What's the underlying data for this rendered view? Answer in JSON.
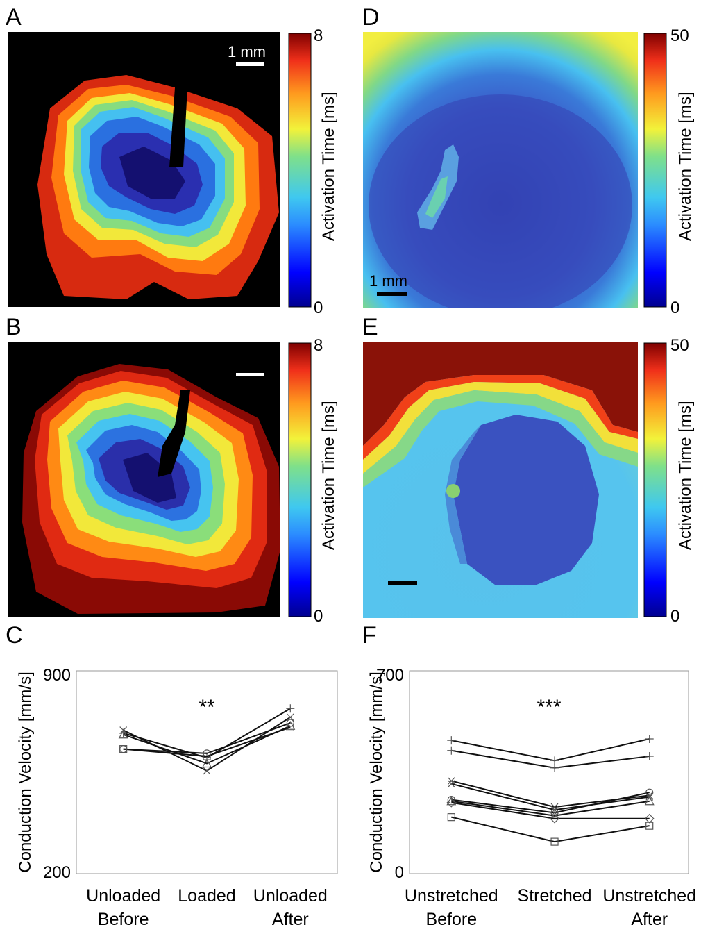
{
  "panels": {
    "A": {
      "label": "A",
      "colorbar": {
        "title": "Activation Time [ms]",
        "max_label": "8",
        "min_label": "0"
      },
      "scalebar_label": "1 mm"
    },
    "B": {
      "label": "B",
      "colorbar": {
        "title": "Activation Time [ms]",
        "max_label": "8",
        "min_label": "0"
      }
    },
    "D": {
      "label": "D",
      "colorbar": {
        "title": "Activation Time [ms]",
        "max_label": "50",
        "min_label": "0"
      },
      "scalebar_label": "1 mm"
    },
    "E": {
      "label": "E",
      "colorbar": {
        "title": "Activation Time [ms]",
        "max_label": "50",
        "min_label": "0"
      }
    },
    "C": {
      "label": "C"
    },
    "F": {
      "label": "F"
    }
  },
  "colormap": [
    "#00008f",
    "#0000ff",
    "#2b8cff",
    "#3fc8f0",
    "#7fe08a",
    "#f2f23a",
    "#ff9a1e",
    "#f0301a",
    "#7f0000"
  ],
  "chart_data": [
    {
      "panel": "C",
      "type": "line",
      "ylabel": "Conduction Velocity [mm/s]",
      "ylim": [
        200,
        900
      ],
      "yticks": [
        "900",
        "200"
      ],
      "categories": [
        [
          "Unloaded",
          "Before"
        ],
        [
          "Loaded"
        ],
        [
          "Unloaded",
          "After"
        ]
      ],
      "annotation": "**",
      "series": [
        {
          "marker": "x",
          "values": [
            695,
            555,
            740
          ]
        },
        {
          "marker": "+",
          "values": [
            685,
            600,
            770
          ]
        },
        {
          "marker": "triangle",
          "values": [
            680,
            580,
            710
          ]
        },
        {
          "marker": "circle",
          "values": [
            630,
            615,
            720
          ]
        },
        {
          "marker": "square",
          "values": [
            630,
            605,
            705
          ]
        }
      ]
    },
    {
      "panel": "F",
      "type": "line",
      "ylabel": "Conduction Velocity [mm/s]",
      "ylim": [
        0,
        700
      ],
      "yticks": [
        "700",
        "0"
      ],
      "categories": [
        [
          "Unstretched",
          "Before"
        ],
        [
          "Stretched"
        ],
        [
          "Unstretched",
          "After"
        ]
      ],
      "annotation": "***",
      "series": [
        {
          "marker": "+",
          "values": [
            460,
            390,
            465
          ]
        },
        {
          "marker": "+",
          "values": [
            425,
            365,
            405
          ]
        },
        {
          "marker": "x",
          "values": [
            320,
            230,
            270
          ]
        },
        {
          "marker": "x",
          "values": [
            310,
            220,
            265
          ]
        },
        {
          "marker": "circle",
          "values": [
            255,
            210,
            280
          ]
        },
        {
          "marker": "triangle",
          "values": [
            250,
            200,
            250
          ]
        },
        {
          "marker": "diamond",
          "values": [
            245,
            190,
            190
          ]
        },
        {
          "marker": "square",
          "values": [
            195,
            110,
            165
          ]
        }
      ]
    }
  ]
}
